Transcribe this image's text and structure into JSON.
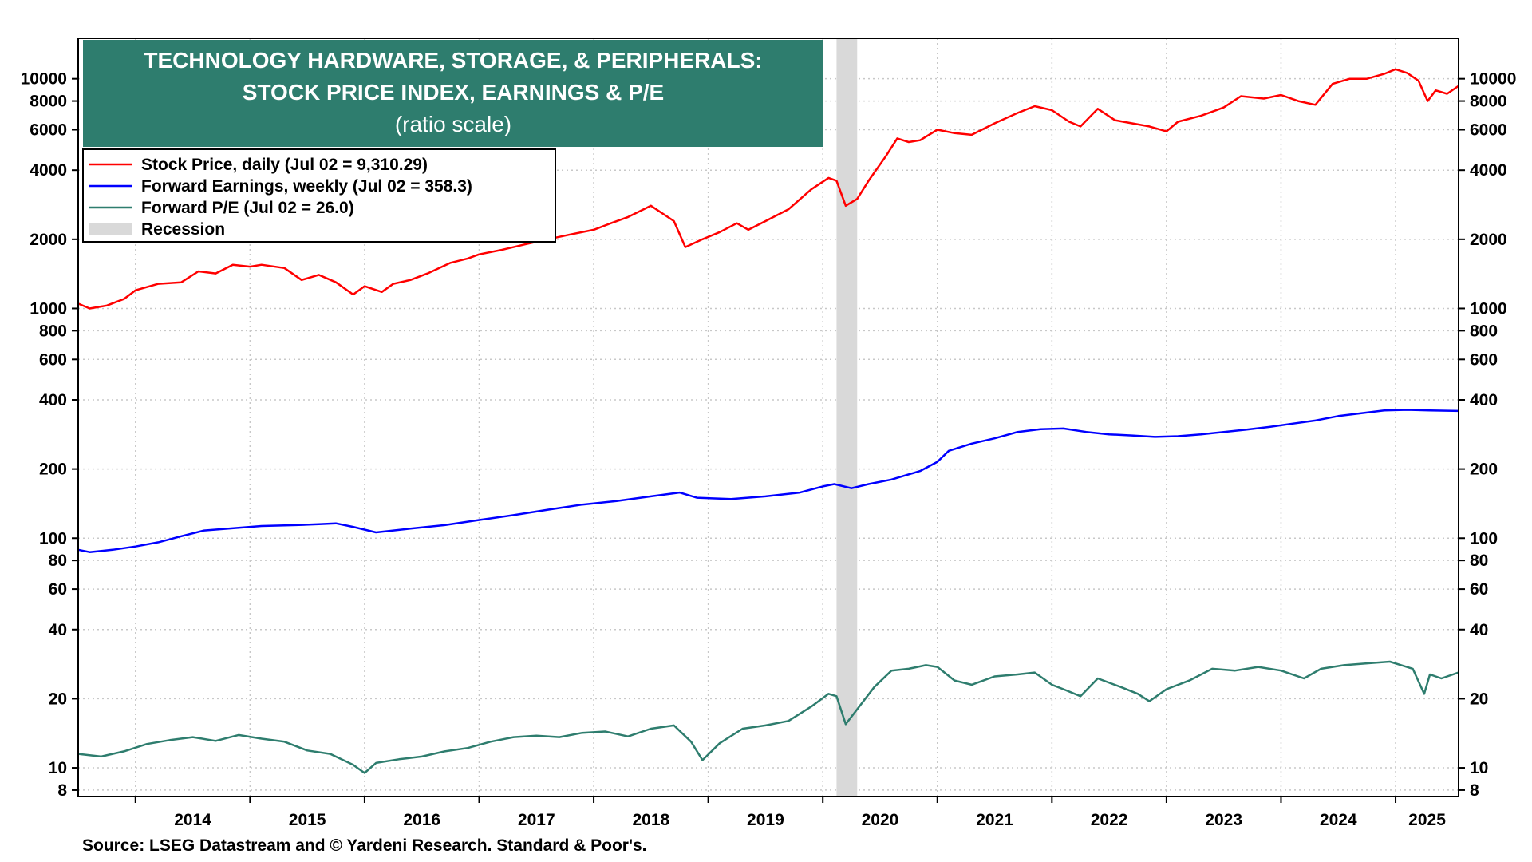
{
  "chart_data": {
    "type": "line",
    "title_lines": [
      "TECHNOLOGY HARDWARE, STORAGE, & PERIPHERALS:",
      "STOCK PRICE INDEX, EARNINGS & P/E",
      "(ratio scale)"
    ],
    "y_scale": "log",
    "ylim": [
      7.5,
      15000
    ],
    "y_ticks": [
      8,
      10,
      20,
      40,
      60,
      80,
      100,
      200,
      400,
      600,
      800,
      1000,
      2000,
      4000,
      6000,
      8000,
      10000
    ],
    "x_ticks": [
      "2014",
      "2015",
      "2016",
      "2017",
      "2018",
      "2019",
      "2020",
      "2021",
      "2022",
      "2023",
      "2024",
      "2025"
    ],
    "xlim": [
      2013.5,
      2025.55
    ],
    "grid": true,
    "legend_position": "top-left",
    "recession": {
      "label": "Recession",
      "start": 2020.12,
      "end": 2020.3
    },
    "series": [
      {
        "name": "Stock Price, daily (Jul 02 = 9,310.29)",
        "color": "#ff0000",
        "x": [
          2013.5,
          2013.6,
          2013.75,
          2013.9,
          2014.0,
          2014.2,
          2014.4,
          2014.55,
          2014.7,
          2014.85,
          2015.0,
          2015.1,
          2015.3,
          2015.45,
          2015.6,
          2015.75,
          2015.9,
          2016.0,
          2016.15,
          2016.25,
          2016.4,
          2016.55,
          2016.75,
          2016.9,
          2017.0,
          2017.2,
          2017.4,
          2017.6,
          2017.8,
          2018.0,
          2018.15,
          2018.3,
          2018.5,
          2018.7,
          2018.8,
          2018.95,
          2019.1,
          2019.25,
          2019.35,
          2019.5,
          2019.7,
          2019.9,
          2020.05,
          2020.12,
          2020.2,
          2020.3,
          2020.4,
          2020.55,
          2020.65,
          2020.75,
          2020.85,
          2021.0,
          2021.15,
          2021.3,
          2021.5,
          2021.7,
          2021.85,
          2022.0,
          2022.15,
          2022.25,
          2022.4,
          2022.55,
          2022.7,
          2022.85,
          2023.0,
          2023.1,
          2023.3,
          2023.5,
          2023.65,
          2023.85,
          2024.0,
          2024.15,
          2024.3,
          2024.45,
          2024.6,
          2024.75,
          2024.9,
          2025.0,
          2025.1,
          2025.2,
          2025.28,
          2025.35,
          2025.45,
          2025.55
        ],
        "values": [
          1050,
          1000,
          1030,
          1100,
          1200,
          1280,
          1300,
          1450,
          1420,
          1550,
          1520,
          1550,
          1500,
          1330,
          1400,
          1300,
          1150,
          1250,
          1180,
          1280,
          1330,
          1420,
          1580,
          1650,
          1720,
          1800,
          1900,
          2000,
          2100,
          2200,
          2350,
          2500,
          2800,
          2400,
          1850,
          2000,
          2150,
          2350,
          2200,
          2400,
          2700,
          3300,
          3700,
          3600,
          2800,
          3000,
          3600,
          4600,
          5500,
          5300,
          5400,
          6000,
          5800,
          5700,
          6400,
          7100,
          7600,
          7300,
          6500,
          6200,
          7400,
          6600,
          6400,
          6200,
          5900,
          6500,
          6900,
          7500,
          8400,
          8200,
          8500,
          8000,
          7700,
          9500,
          10000,
          10000,
          10500,
          11000,
          10600,
          9800,
          8000,
          8900,
          8600,
          9310
        ]
      },
      {
        "name": "Forward Earnings, weekly (Jul 02 = 358.3)",
        "color": "#0000ff",
        "x": [
          2013.5,
          2013.6,
          2013.8,
          2014.0,
          2014.2,
          2014.4,
          2014.6,
          2014.9,
          2015.1,
          2015.4,
          2015.6,
          2015.75,
          2015.9,
          2016.1,
          2016.4,
          2016.7,
          2017.0,
          2017.3,
          2017.6,
          2017.9,
          2018.2,
          2018.5,
          2018.75,
          2018.9,
          2019.2,
          2019.5,
          2019.8,
          2020.0,
          2020.1,
          2020.25,
          2020.4,
          2020.6,
          2020.85,
          2021.0,
          2021.1,
          2021.3,
          2021.5,
          2021.7,
          2021.9,
          2022.1,
          2022.3,
          2022.5,
          2022.7,
          2022.9,
          2023.1,
          2023.3,
          2023.5,
          2023.7,
          2023.9,
          2024.1,
          2024.3,
          2024.5,
          2024.7,
          2024.9,
          2025.1,
          2025.3,
          2025.55
        ],
        "values": [
          89,
          87,
          89,
          92,
          96,
          102,
          108,
          111,
          113,
          114,
          115,
          116,
          112,
          106,
          110,
          114,
          120,
          126,
          133,
          140,
          145,
          152,
          158,
          150,
          148,
          152,
          158,
          168,
          172,
          165,
          172,
          180,
          196,
          215,
          240,
          258,
          272,
          290,
          298,
          300,
          290,
          283,
          280,
          276,
          278,
          283,
          290,
          297,
          305,
          315,
          325,
          340,
          350,
          360,
          362,
          360,
          358
        ]
      },
      {
        "name": "Forward P/E (Jul 02 = 26.0)",
        "color": "#2e7d6e",
        "x": [
          2013.5,
          2013.7,
          2013.9,
          2014.1,
          2014.3,
          2014.5,
          2014.7,
          2014.9,
          2015.1,
          2015.3,
          2015.5,
          2015.7,
          2015.9,
          2016.0,
          2016.1,
          2016.3,
          2016.5,
          2016.7,
          2016.9,
          2017.1,
          2017.3,
          2017.5,
          2017.7,
          2017.9,
          2018.1,
          2018.3,
          2018.5,
          2018.7,
          2018.85,
          2018.95,
          2019.1,
          2019.3,
          2019.5,
          2019.7,
          2019.9,
          2020.05,
          2020.12,
          2020.2,
          2020.3,
          2020.45,
          2020.6,
          2020.75,
          2020.9,
          2021.0,
          2021.15,
          2021.3,
          2021.5,
          2021.7,
          2021.85,
          2022.0,
          2022.1,
          2022.25,
          2022.4,
          2022.6,
          2022.75,
          2022.85,
          2023.0,
          2023.2,
          2023.4,
          2023.6,
          2023.8,
          2024.0,
          2024.2,
          2024.35,
          2024.55,
          2024.75,
          2024.95,
          2025.05,
          2025.15,
          2025.25,
          2025.3,
          2025.4,
          2025.55
        ],
        "values": [
          11.5,
          11.2,
          11.8,
          12.7,
          13.2,
          13.6,
          13.1,
          13.9,
          13.4,
          13.0,
          11.9,
          11.5,
          10.3,
          9.5,
          10.5,
          10.9,
          11.2,
          11.8,
          12.2,
          13.0,
          13.6,
          13.8,
          13.6,
          14.2,
          14.4,
          13.7,
          14.8,
          15.3,
          13.0,
          10.8,
          12.8,
          14.8,
          15.3,
          16.0,
          18.5,
          21.0,
          20.5,
          15.5,
          18.0,
          22.5,
          26.5,
          27.0,
          28.0,
          27.5,
          24.0,
          23.0,
          25.0,
          25.5,
          26.0,
          23.0,
          22.0,
          20.5,
          24.5,
          22.5,
          21.0,
          19.5,
          22.0,
          24.0,
          27.0,
          26.5,
          27.5,
          26.5,
          24.5,
          27.0,
          28.0,
          28.5,
          29.0,
          28.0,
          27.0,
          21.0,
          25.5,
          24.5,
          26.0
        ]
      }
    ]
  },
  "source": "Source: LSEG Datastream and © Yardeni Research. Standard & Poor's."
}
